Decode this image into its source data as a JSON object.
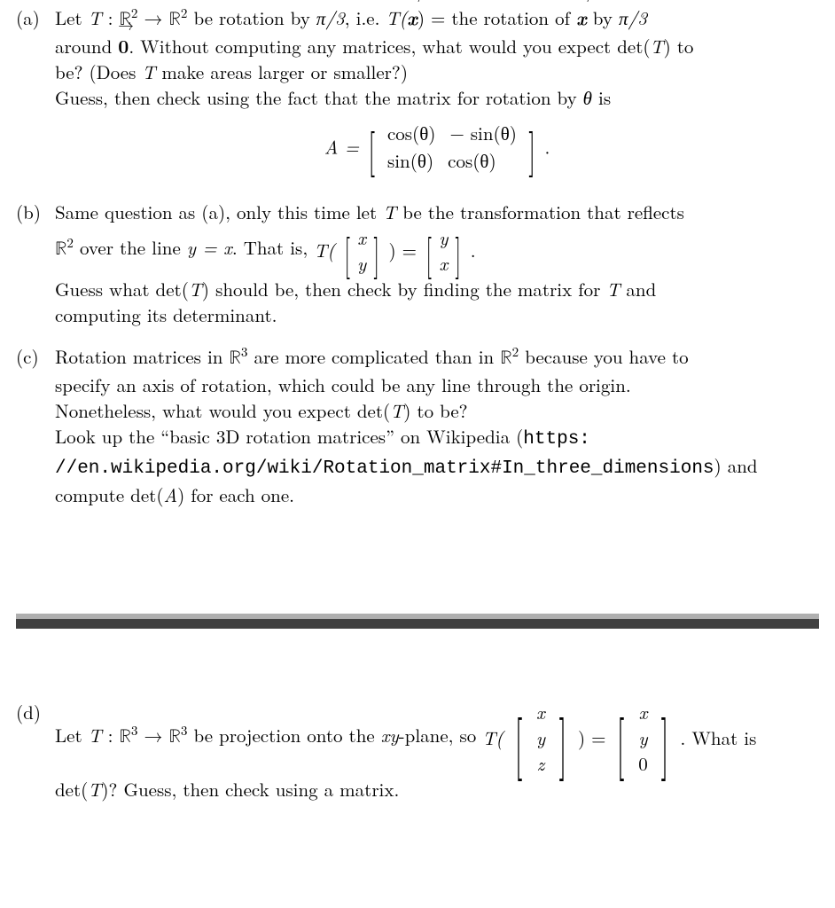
{
  "a": {
    "label": "(a)",
    "line1_pre": "Let ",
    "line1_T": "T",
    "line1_colon": " : ",
    "line1_R2a": "ℝ",
    "line1_sup": "2",
    "line1_arrow": " → ",
    "line1_R2b": "ℝ",
    "line1_after": " be rotation by ",
    "line1_pi3": "π/3",
    "line1_ie": ", i.e. ",
    "line1_Tx": "T(",
    "line1_xvec": "x",
    "line1_Tx_close": ") = the rotation of ",
    "line1_xvec2": "x",
    "line1_by": " by ",
    "line1_pi3b": "π/3",
    "line2": "around ",
    "line2_zero": "0",
    "line2_after": ". Without computing any matrices, what would you expect det(",
    "line2_T": "T",
    "line2_end": ") to",
    "line3": "be? (Does ",
    "line3_T": "T",
    "line3_end": " make areas larger or smaller?)",
    "line4": "Guess, then check using the fact that the matrix for rotation by ",
    "line4_theta": "θ",
    "line4_end": " is",
    "matrixA_lhs": "A = ",
    "m00": "cos(θ)",
    "m01": "− sin(θ)",
    "m10": "sin(θ)",
    "m11": "cos(θ)",
    "matrixA_period": "."
  },
  "b": {
    "label": "(b)",
    "line1": "Same question as (a), only this time let ",
    "line1_T": "T",
    "line1_end": " be the transformation that reflects",
    "line2_R2": "ℝ",
    "line2_sup": "2",
    "line2_over": " over the line ",
    "line2_yx": "y = x",
    "line2_thatis": ". That is, ",
    "line2_Topen": "T(",
    "vec_in_top": "x",
    "vec_in_bot": "y",
    "line2_eq": ") = ",
    "vec_out_top": "y",
    "vec_out_bot": "x",
    "line2_period": ".",
    "line3": "Guess what det(",
    "line3_T": "T",
    "line3_mid": ") should be, then check by finding the matrix for ",
    "line3_T2": "T",
    "line3_end": " and",
    "line4": "computing its determinant."
  },
  "c": {
    "label": "(c)",
    "line1": "Rotation matrices in ",
    "line1_R3": "ℝ",
    "line1_sup3": "3",
    "line1_mid": " are more complicated than in ",
    "line1_R2": "ℝ",
    "line1_sup2": "2",
    "line1_end": " because you have to",
    "line2": "specify an axis of rotation, which could be any line through the origin.",
    "line3a": "Nonetheless, what would you expect det(",
    "line3_T": "T",
    "line3b": ") to be?",
    "line4": "Look up the “basic 3D rotation matrices” on Wikipedia (",
    "url1": "https:",
    "url2": "//en.wikipedia.org/wiki/Rotation_matrix#In_three_dimensions",
    "line5_close": ") and",
    "line6": "compute det(",
    "line6_A": "A",
    "line6_end": ") for each one."
  },
  "d": {
    "label": "(d)",
    "line1_pre": "Let ",
    "line1_T": "T",
    "line1_colon": " : ",
    "line1_R3a": "ℝ",
    "line1_sup3": "3",
    "line1_arrow": " → ",
    "line1_R3b": "ℝ",
    "line1_mid": " be projection onto the ",
    "line1_xy": "xy",
    "line1_plane": "-plane, so ",
    "line1_Topen": "T(",
    "vin_0": "x",
    "vin_1": "y",
    "vin_2": "z",
    "line1_eq": ") = ",
    "vout_0": "x",
    "vout_1": "y",
    "vout_2": "0",
    "line1_period": ".  What is",
    "line2": "det(",
    "line2_T": "T",
    "line2_end": ")? Guess, then check using a matrix."
  }
}
